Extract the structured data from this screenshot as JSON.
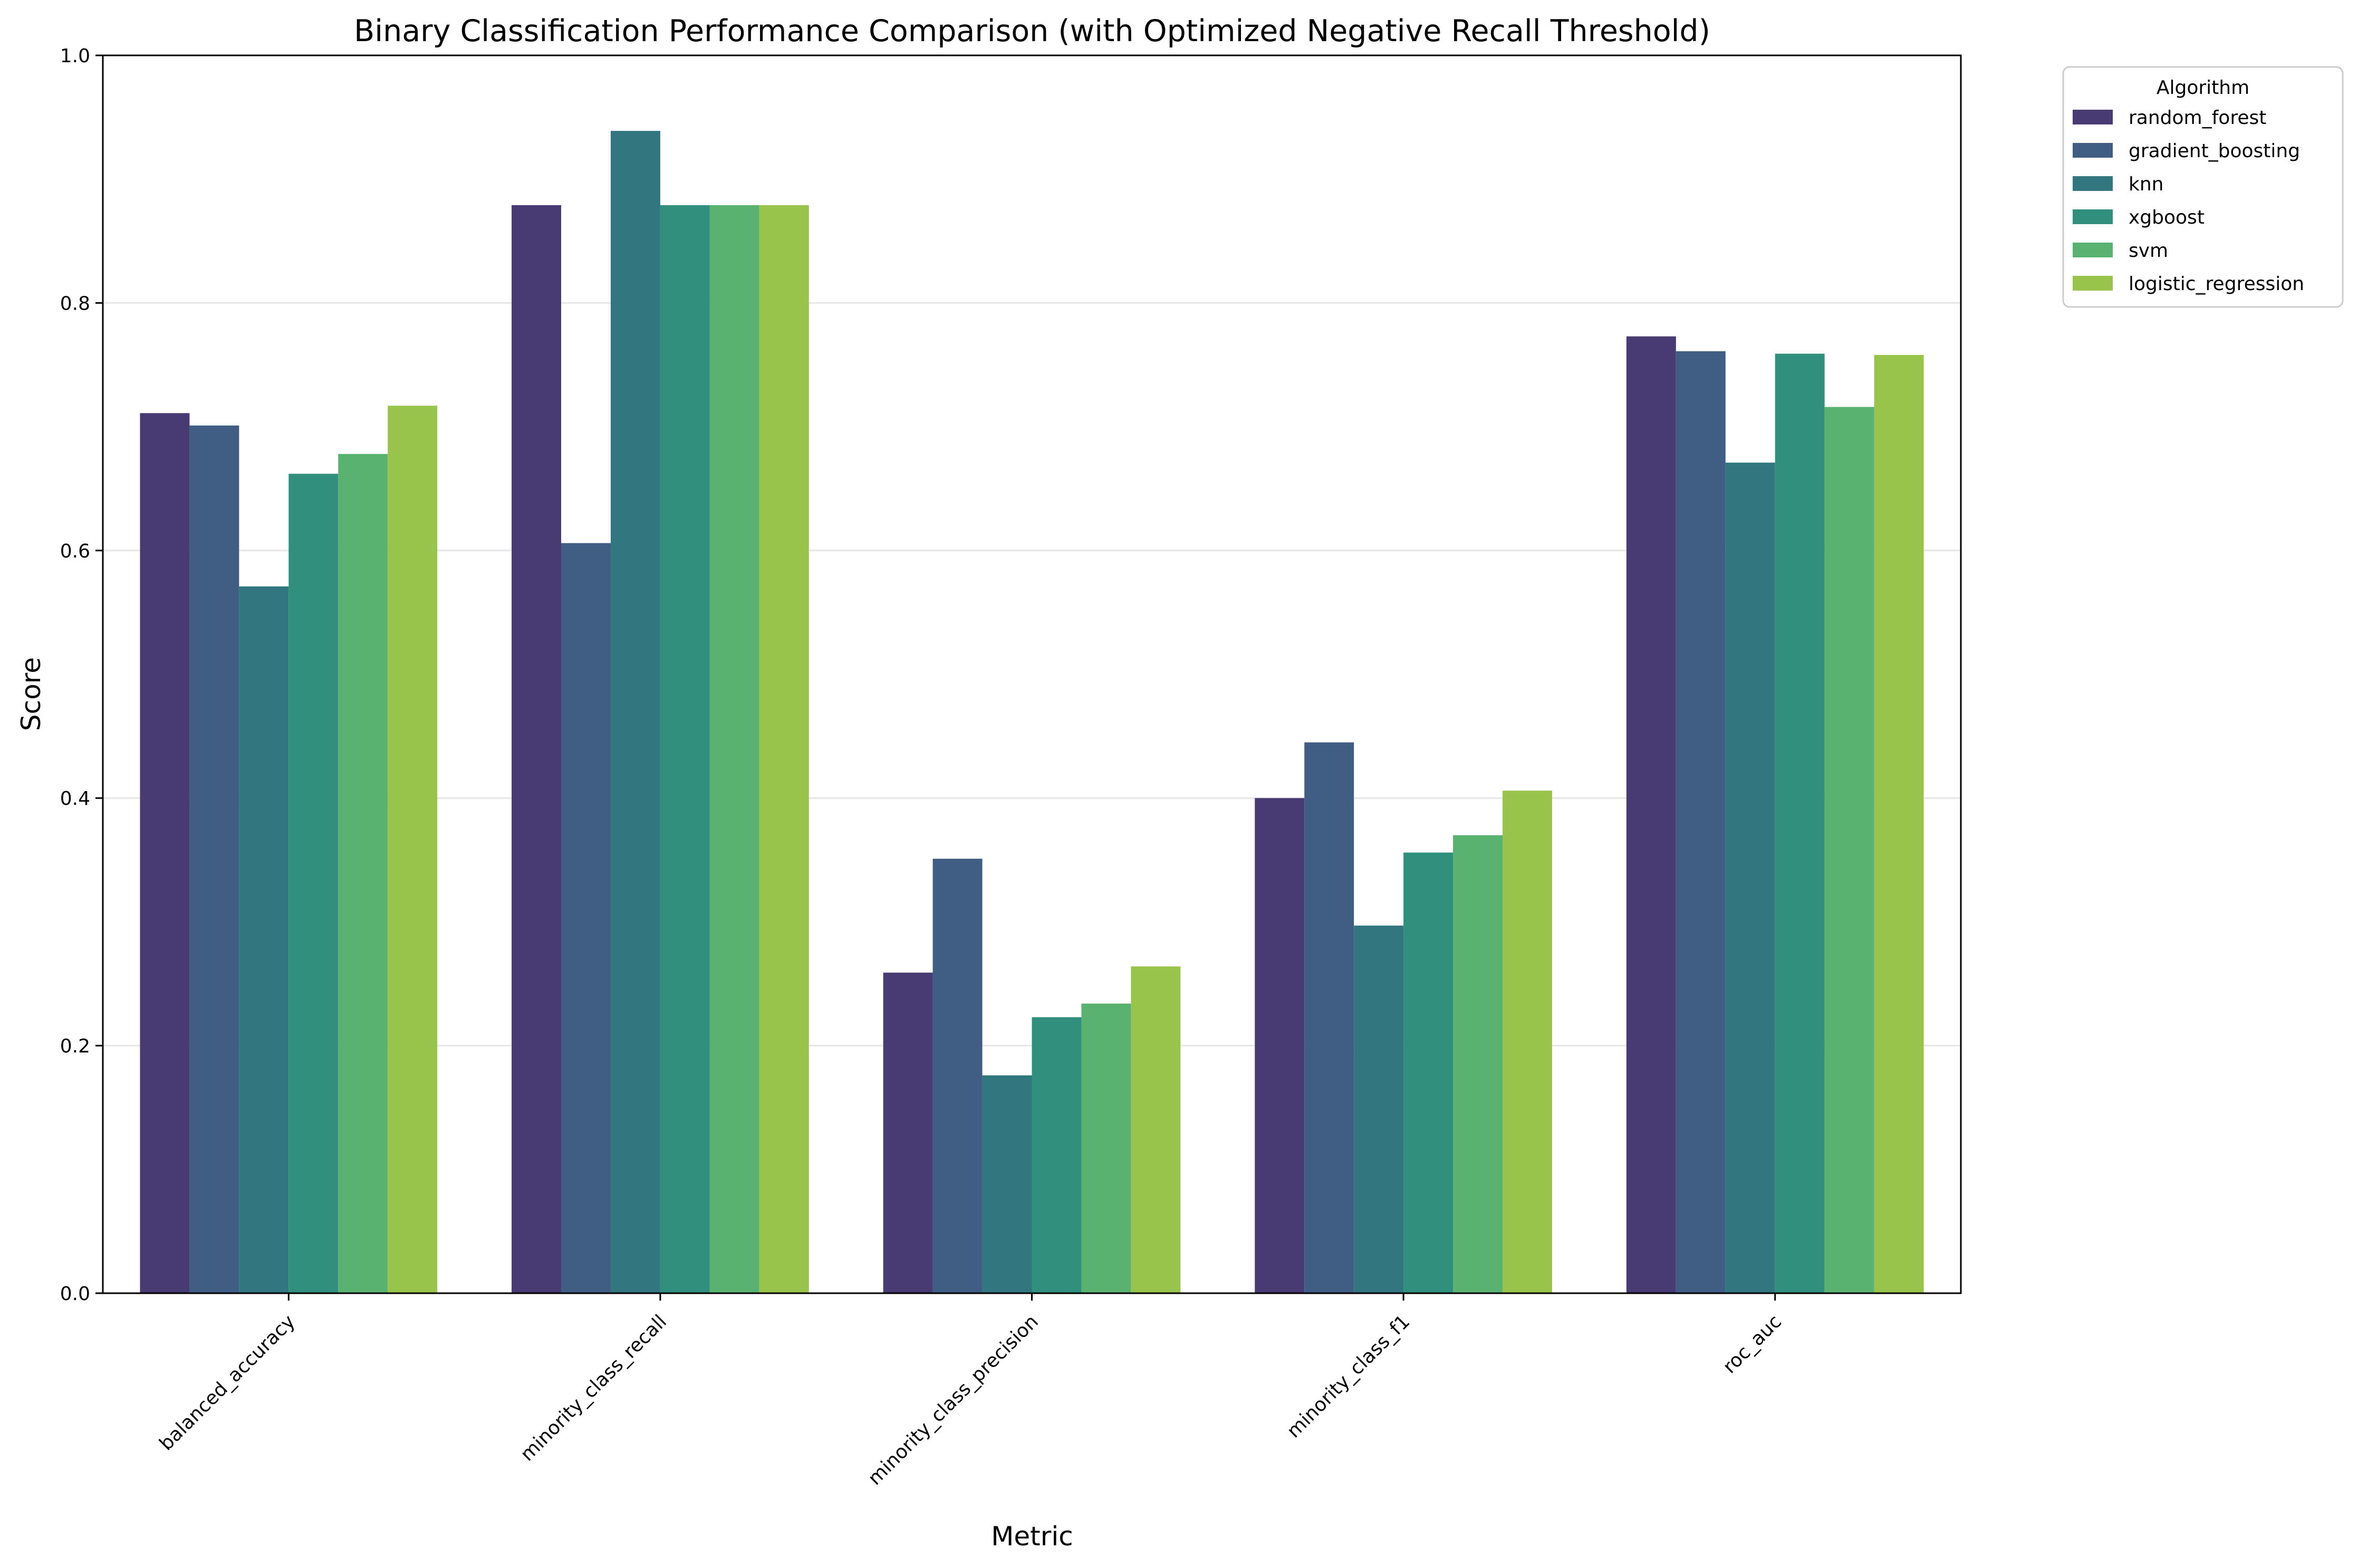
{
  "chart_data": {
    "type": "bar",
    "title": "Binary Classification Performance Comparison (with Optimized Negative Recall Threshold)",
    "xlabel": "Metric",
    "ylabel": "Score",
    "ylim": [
      0,
      1.0
    ],
    "yticks": [
      "0.0",
      "0.2",
      "0.4",
      "0.6",
      "0.8",
      "1.0"
    ],
    "grid": "horizontal",
    "legend": {
      "title": "Algorithm",
      "placement": "outside-top-right"
    },
    "categories": [
      "balanced_accuracy",
      "minority_class_recall",
      "minority_class_precision",
      "minority_class_f1",
      "roc_auc"
    ],
    "series": [
      {
        "name": "random_forest",
        "color": "#483A72",
        "values": [
          0.711,
          0.879,
          0.259,
          0.4,
          0.773
        ]
      },
      {
        "name": "gradient_boosting",
        "color": "#405D83",
        "values": [
          0.701,
          0.606,
          0.351,
          0.445,
          0.761
        ]
      },
      {
        "name": "knn",
        "color": "#32767F",
        "values": [
          0.571,
          0.939,
          0.176,
          0.297,
          0.671
        ]
      },
      {
        "name": "xgboost",
        "color": "#30907D",
        "values": [
          0.662,
          0.879,
          0.223,
          0.356,
          0.759
        ]
      },
      {
        "name": "svm",
        "color": "#5AB270",
        "values": [
          0.678,
          0.879,
          0.234,
          0.37,
          0.716
        ]
      },
      {
        "name": "logistic_regression",
        "color": "#99C44C",
        "values": [
          0.717,
          0.879,
          0.264,
          0.406,
          0.758
        ]
      }
    ]
  }
}
